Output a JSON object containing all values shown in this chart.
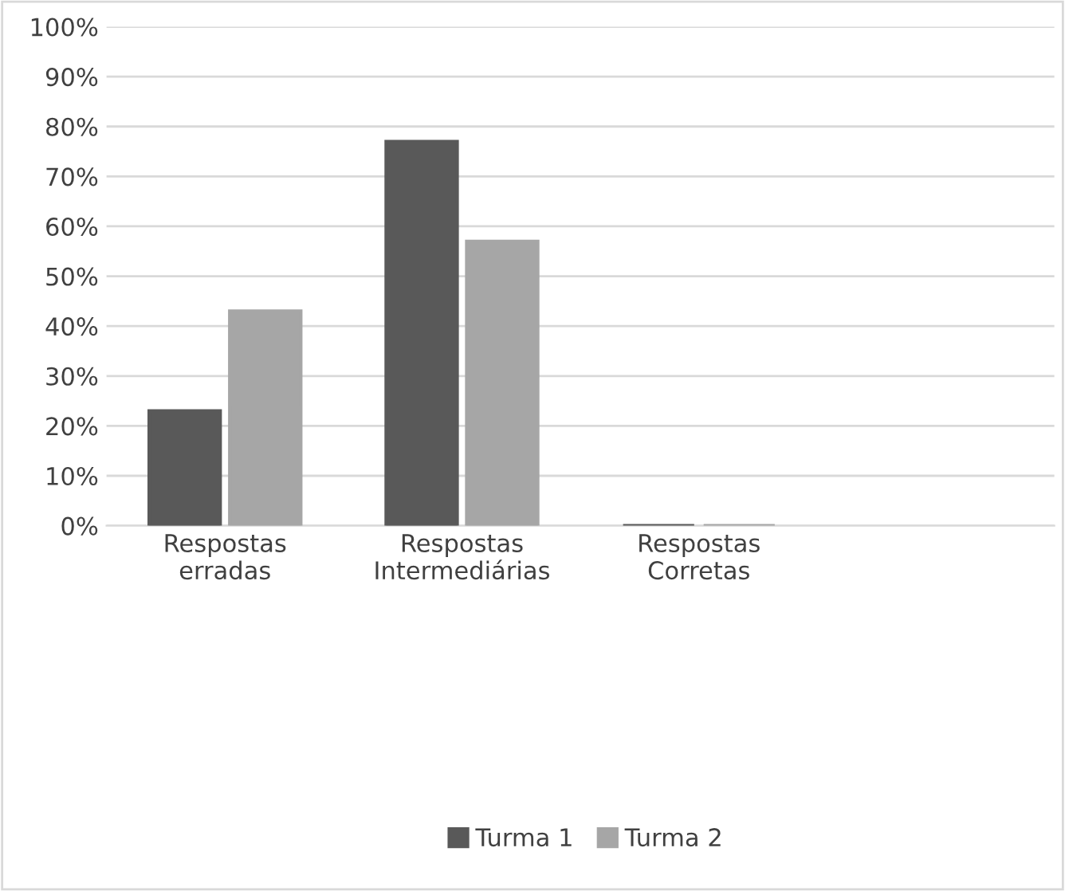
{
  "chart_data": {
    "type": "bar",
    "categories": [
      "Respostas\nerradas",
      "Respostas\nIntermediárias",
      "Respostas\nCorretas",
      null
    ],
    "series": [
      {
        "name": "Turma 1",
        "color": "#595959",
        "values": [
          23,
          77,
          0,
          null
        ]
      },
      {
        "name": "Turma 2",
        "color": "#a6a6a6",
        "values": [
          43,
          57,
          0,
          null
        ]
      }
    ],
    "ylim": [
      0,
      100
    ],
    "yticks": [
      {
        "value": 0,
        "label": "0%"
      },
      {
        "value": 10,
        "label": "10%"
      },
      {
        "value": 20,
        "label": "20%"
      },
      {
        "value": 30,
        "label": "30%"
      },
      {
        "value": 40,
        "label": "40%"
      },
      {
        "value": 50,
        "label": "50%"
      },
      {
        "value": 60,
        "label": "60%"
      },
      {
        "value": 70,
        "label": "70%"
      },
      {
        "value": 80,
        "label": "80%"
      },
      {
        "value": 90,
        "label": "90%"
      },
      {
        "value": 100,
        "label": "100%"
      }
    ],
    "grid": "y",
    "legend": "bottom"
  }
}
